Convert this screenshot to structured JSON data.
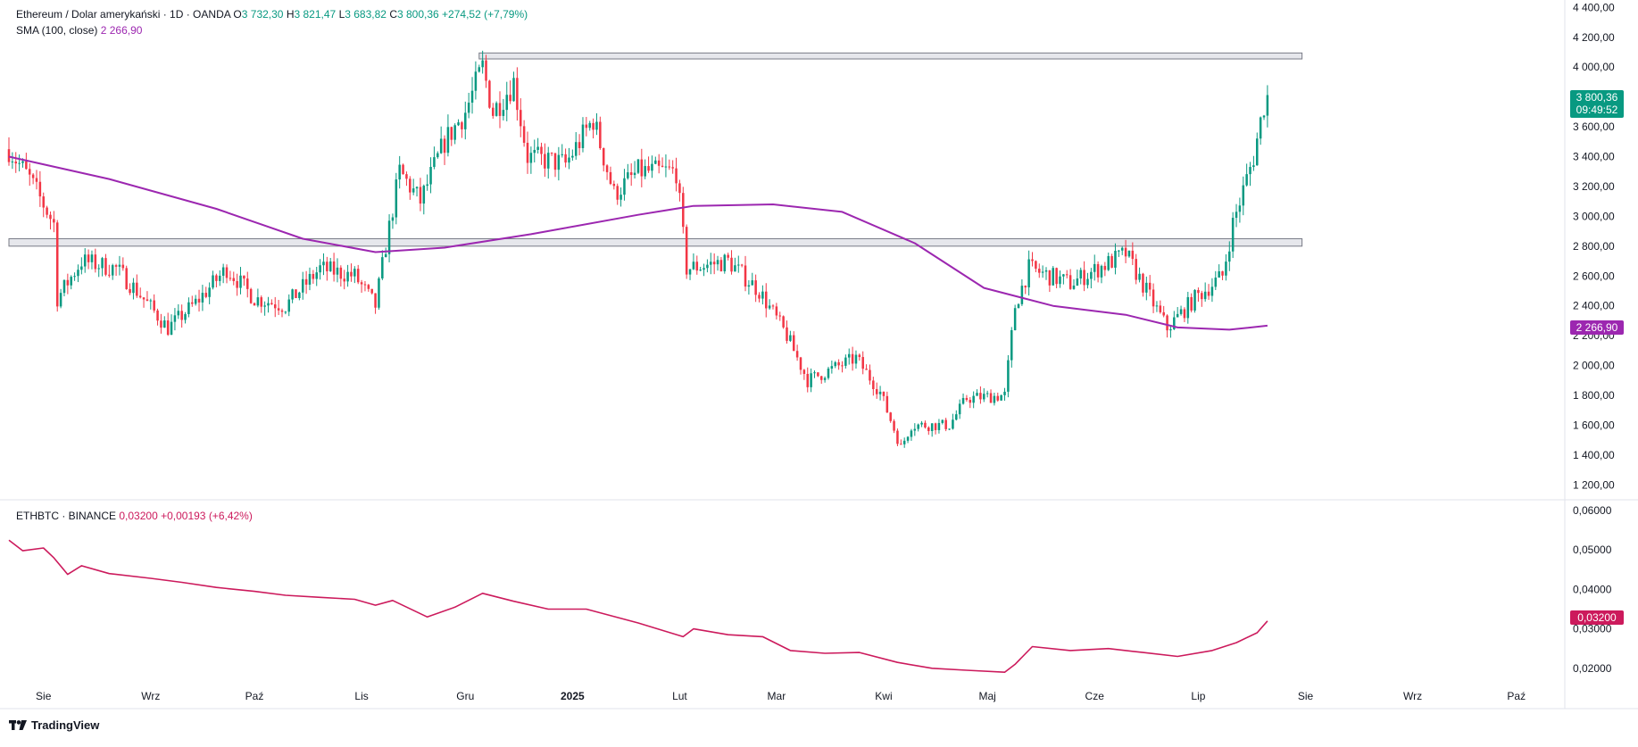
{
  "colors": {
    "up": "#089981",
    "down": "#f23645",
    "sma": "#9c27b0",
    "ratio": "#cc1a5c",
    "zone_fill": "#d1d4dc",
    "zone_stroke": "#787b86",
    "grid": "#f0f3fa",
    "axis_text": "#131722"
  },
  "legend_main": {
    "symbol": "Ethereum / Dolar amerykański · 1D · OANDA",
    "o_label": "O",
    "o_value": "3 732,30",
    "h_label": "H",
    "h_value": "3 821,47",
    "l_label": "L",
    "l_value": "3 683,82",
    "c_label": "C",
    "c_value": "3 800,36",
    "change": "+274,52 (+7,79%)"
  },
  "legend_sma": {
    "label": "SMA (100, close)",
    "value": "2 266,90"
  },
  "legend_ratio": {
    "symbol": "ETHBTC · BINANCE",
    "value": "0,03200",
    "change": "+0,00193 (+6,42%)"
  },
  "price_badge": {
    "price": "3 800,36",
    "countdown": "09:49:52"
  },
  "sma_badge": "2 266,90",
  "ratio_badge": "0,03200",
  "logo_text": "TradingView",
  "chart_data": [
    {
      "type": "candlestick",
      "title": "Ethereum / Dolar amerykański · 1D · OANDA",
      "ylim": [
        1100,
        4450
      ],
      "y_ticks": [
        "4 400,00",
        "4 200,00",
        "4 000,00",
        "3 800,00",
        "3 600,00",
        "3 400,00",
        "3 200,00",
        "3 000,00",
        "2 800,00",
        "2 600,00",
        "2 400,00",
        "2 200,00",
        "2 000,00",
        "1 800,00",
        "1 600,00",
        "1 400,00",
        "1 200,00"
      ],
      "y_tick_values": [
        4400,
        4200,
        4000,
        3800,
        3600,
        3400,
        3200,
        3000,
        2800,
        2600,
        2400,
        2200,
        2000,
        1800,
        1600,
        1400,
        1200
      ],
      "x_tick_labels": [
        "Sie",
        "Wrz",
        "Paź",
        "Lis",
        "Gru",
        "2025",
        "Lut",
        "Mar",
        "Kwi",
        "Maj",
        "Cze",
        "Lip",
        "Sie",
        "Wrz",
        "Paź"
      ],
      "x_tick_dates": [
        "2024-08-01",
        "2024-09-01",
        "2024-10-01",
        "2024-11-01",
        "2024-12-01",
        "2025-01-01",
        "2025-02-01",
        "2025-03-01",
        "2025-04-01",
        "2025-05-01",
        "2025-06-01",
        "2025-07-01",
        "2025-08-01",
        "2025-09-01",
        "2025-10-01"
      ],
      "date_range": [
        "2024-07-22",
        "2025-10-15"
      ],
      "last_date": "2025-07-21",
      "zones": [
        {
          "from": "2024-12-05",
          "to": "2025-07-31",
          "low": 4055,
          "high": 4095
        },
        {
          "from": "2024-07-22",
          "to": "2025-07-31",
          "low": 2800,
          "high": 2850
        }
      ],
      "price_path": [
        [
          "2024-07-22",
          3450
        ],
        [
          "2024-07-28",
          3250
        ],
        [
          "2024-08-04",
          2950
        ],
        [
          "2024-08-05",
          2450
        ],
        [
          "2024-08-12",
          2700
        ],
        [
          "2024-08-22",
          2650
        ],
        [
          "2024-08-28",
          2500
        ],
        [
          "2024-09-06",
          2250
        ],
        [
          "2024-09-14",
          2420
        ],
        [
          "2024-09-23",
          2650
        ],
        [
          "2024-10-01",
          2450
        ],
        [
          "2024-10-10",
          2400
        ],
        [
          "2024-10-20",
          2650
        ],
        [
          "2024-10-30",
          2600
        ],
        [
          "2024-11-05",
          2400
        ],
        [
          "2024-11-08",
          2800
        ],
        [
          "2024-11-12",
          3300
        ],
        [
          "2024-11-18",
          3100
        ],
        [
          "2024-11-25",
          3500
        ],
        [
          "2024-12-01",
          3700
        ],
        [
          "2024-12-06",
          4000
        ],
        [
          "2024-12-09",
          3700
        ],
        [
          "2024-12-15",
          3900
        ],
        [
          "2024-12-19",
          3400
        ],
        [
          "2024-12-30",
          3350
        ],
        [
          "2025-01-07",
          3650
        ],
        [
          "2025-01-13",
          3150
        ],
        [
          "2025-01-20",
          3300
        ],
        [
          "2025-01-31",
          3300
        ],
        [
          "2025-02-03",
          2650
        ],
        [
          "2025-02-15",
          2700
        ],
        [
          "2025-02-24",
          2500
        ],
        [
          "2025-03-04",
          2200
        ],
        [
          "2025-03-10",
          1900
        ],
        [
          "2025-03-24",
          2050
        ],
        [
          "2025-03-31",
          1820
        ],
        [
          "2025-04-06",
          1450
        ],
        [
          "2025-04-09",
          1600
        ],
        [
          "2025-04-20",
          1600
        ],
        [
          "2025-04-25",
          1780
        ],
        [
          "2025-05-06",
          1800
        ],
        [
          "2025-05-09",
          2400
        ],
        [
          "2025-05-13",
          2650
        ],
        [
          "2025-05-25",
          2550
        ],
        [
          "2025-06-10",
          2750
        ],
        [
          "2025-06-16",
          2500
        ],
        [
          "2025-06-22",
          2250
        ],
        [
          "2025-06-30",
          2450
        ],
        [
          "2025-07-08",
          2600
        ],
        [
          "2025-07-11",
          2950
        ],
        [
          "2025-07-17",
          3400
        ],
        [
          "2025-07-20",
          3750
        ],
        [
          "2025-07-21",
          3800
        ]
      ],
      "sma_path": [
        [
          "2024-07-22",
          3400
        ],
        [
          "2024-08-20",
          3250
        ],
        [
          "2024-09-20",
          3050
        ],
        [
          "2024-10-15",
          2850
        ],
        [
          "2024-11-05",
          2760
        ],
        [
          "2024-11-25",
          2790
        ],
        [
          "2024-12-20",
          2880
        ],
        [
          "2025-01-20",
          3010
        ],
        [
          "2025-02-05",
          3070
        ],
        [
          "2025-02-28",
          3080
        ],
        [
          "2025-03-20",
          3030
        ],
        [
          "2025-04-10",
          2820
        ],
        [
          "2025-04-30",
          2520
        ],
        [
          "2025-05-20",
          2400
        ],
        [
          "2025-06-10",
          2340
        ],
        [
          "2025-06-25",
          2255
        ],
        [
          "2025-07-10",
          2240
        ],
        [
          "2025-07-21",
          2267
        ]
      ]
    },
    {
      "type": "line",
      "title": "ETHBTC · BINANCE",
      "ylim": [
        0.0152,
        0.0625
      ],
      "y_ticks": [
        "0,06000",
        "0,05000",
        "0,04000",
        "0,03000",
        "0,02000"
      ],
      "y_tick_values": [
        0.06,
        0.05,
        0.04,
        0.03,
        0.02
      ],
      "values": [
        [
          "2024-07-22",
          0.0525
        ],
        [
          "2024-07-26",
          0.0498
        ],
        [
          "2024-08-01",
          0.0505
        ],
        [
          "2024-08-04",
          0.048
        ],
        [
          "2024-08-08",
          0.0438
        ],
        [
          "2024-08-12",
          0.046
        ],
        [
          "2024-08-20",
          0.044
        ],
        [
          "2024-09-01",
          0.0428
        ],
        [
          "2024-09-10",
          0.0418
        ],
        [
          "2024-09-20",
          0.0405
        ],
        [
          "2024-10-01",
          0.0395
        ],
        [
          "2024-10-10",
          0.0385
        ],
        [
          "2024-10-20",
          0.038
        ],
        [
          "2024-10-30",
          0.0375
        ],
        [
          "2024-11-05",
          0.036
        ],
        [
          "2024-11-10",
          0.0372
        ],
        [
          "2024-11-20",
          0.033
        ],
        [
          "2024-11-28",
          0.0355
        ],
        [
          "2024-12-06",
          0.039
        ],
        [
          "2024-12-15",
          0.037
        ],
        [
          "2024-12-25",
          0.035
        ],
        [
          "2025-01-05",
          0.035
        ],
        [
          "2025-01-20",
          0.0315
        ],
        [
          "2025-02-02",
          0.028
        ],
        [
          "2025-02-05",
          0.03
        ],
        [
          "2025-02-15",
          0.0285
        ],
        [
          "2025-02-25",
          0.028
        ],
        [
          "2025-03-05",
          0.0245
        ],
        [
          "2025-03-15",
          0.0238
        ],
        [
          "2025-03-25",
          0.024
        ],
        [
          "2025-04-05",
          0.0215
        ],
        [
          "2025-04-15",
          0.02
        ],
        [
          "2025-04-25",
          0.0195
        ],
        [
          "2025-05-06",
          0.019
        ],
        [
          "2025-05-09",
          0.021
        ],
        [
          "2025-05-14",
          0.0255
        ],
        [
          "2025-05-25",
          0.0245
        ],
        [
          "2025-06-05",
          0.025
        ],
        [
          "2025-06-15",
          0.024
        ],
        [
          "2025-06-25",
          0.023
        ],
        [
          "2025-07-05",
          0.0245
        ],
        [
          "2025-07-12",
          0.0265
        ],
        [
          "2025-07-18",
          0.029
        ],
        [
          "2025-07-21",
          0.032
        ]
      ]
    }
  ]
}
